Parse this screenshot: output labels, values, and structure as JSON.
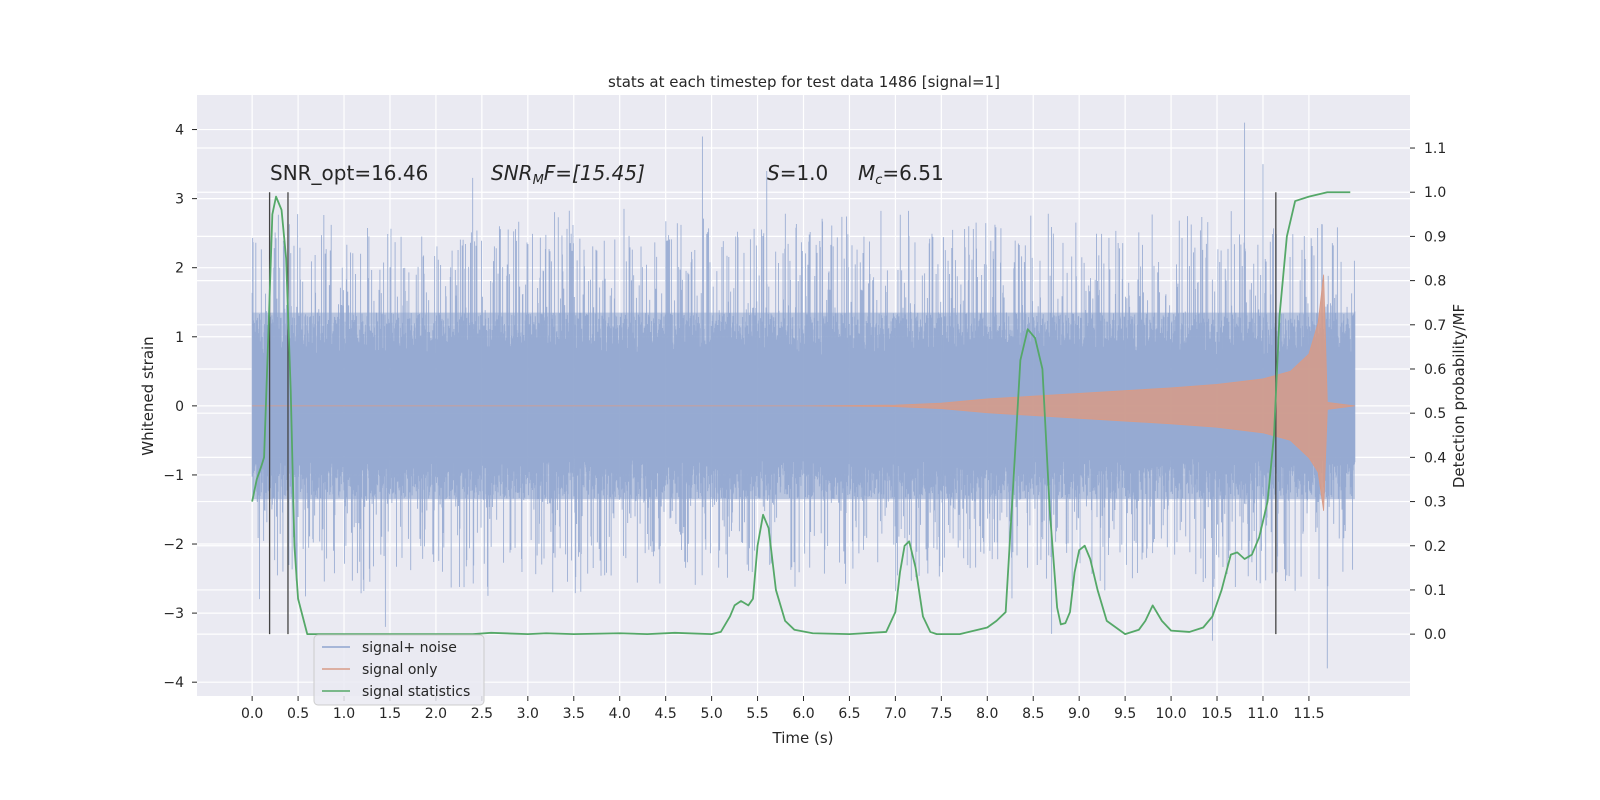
{
  "chart_data": {
    "type": "line",
    "title": "stats at each timestep for test data 1486 [signal=1]",
    "xlabel": "Time (s)",
    "ylabel": "Whitened strain",
    "y2label": "Detection probability/MF",
    "xlim": [
      -0.6,
      12.6
    ],
    "ylim": [
      -4.2,
      4.5
    ],
    "y2lim": [
      -0.14,
      1.22
    ],
    "x_ticks": [
      "0.0",
      "0.5",
      "1.0",
      "1.5",
      "2.0",
      "2.5",
      "3.0",
      "3.5",
      "4.0",
      "4.5",
      "5.0",
      "5.5",
      "6.0",
      "6.5",
      "7.0",
      "7.5",
      "8.0",
      "8.5",
      "9.0",
      "9.5",
      "10.0",
      "10.5",
      "11.0",
      "11.5"
    ],
    "y_ticks": [
      "4",
      "3",
      "2",
      "1",
      "0",
      "−1",
      "−2",
      "−3",
      "−4"
    ],
    "y2_ticks": [
      "1.1",
      "1.0",
      "0.9",
      "0.8",
      "0.7",
      "0.6",
      "0.5",
      "0.4",
      "0.3",
      "0.2",
      "0.1",
      "0.0"
    ],
    "grid": true,
    "legend_position": "lower-left",
    "annotations": {
      "snr_opt": "SNR_opt=16.46",
      "snr_mf_sym": "SNR",
      "snr_mf_sub": "M",
      "snr_mf_rest": "F=[15.45]",
      "s_sym": "S",
      "s_rest": "=1.0",
      "mc_sym": "M",
      "mc_sub": "c",
      "mc_rest": "=6.51"
    },
    "vertical_lines_x": [
      0.19,
      0.39,
      11.14
    ],
    "series": [
      {
        "name": "signal+ noise",
        "color": "#8fa5cf",
        "x_start": 0.0,
        "x_end": 12.0,
        "typical_peak_amplitude": 1.35,
        "max_value": 4.1,
        "min_value": -3.8
      },
      {
        "name": "signal only",
        "color": "#d89b87",
        "x": [
          0.0,
          6.0,
          7.0,
          7.5,
          8.0,
          8.5,
          9.0,
          9.5,
          10.0,
          10.5,
          11.0,
          11.3,
          11.5,
          11.6,
          11.66,
          11.7,
          12.0
        ],
        "envelope": [
          0.0,
          0.0,
          0.01,
          0.04,
          0.1,
          0.14,
          0.18,
          0.22,
          0.26,
          0.31,
          0.39,
          0.5,
          0.75,
          1.2,
          1.9,
          0.05,
          0.0
        ]
      },
      {
        "name": "signal statistics",
        "color": "#55a868",
        "x": [
          0.0,
          0.05,
          0.1,
          0.13,
          0.18,
          0.22,
          0.26,
          0.32,
          0.37,
          0.42,
          0.46,
          0.5,
          0.6,
          0.66,
          1.0,
          2.0,
          2.4,
          2.6,
          3.0,
          3.2,
          3.5,
          4.0,
          4.3,
          4.6,
          5.0,
          5.1,
          5.2,
          5.25,
          5.32,
          5.4,
          5.45,
          5.5,
          5.56,
          5.62,
          5.7,
          5.8,
          5.9,
          6.1,
          6.5,
          6.9,
          7.0,
          7.05,
          7.1,
          7.15,
          7.22,
          7.3,
          7.38,
          7.45,
          7.7,
          8.0,
          8.1,
          8.2,
          8.28,
          8.36,
          8.44,
          8.52,
          8.6,
          8.68,
          8.76,
          8.8,
          8.85,
          8.9,
          8.95,
          9.0,
          9.06,
          9.12,
          9.2,
          9.3,
          9.5,
          9.65,
          9.72,
          9.8,
          9.9,
          10.0,
          10.2,
          10.35,
          10.45,
          10.55,
          10.65,
          10.72,
          10.8,
          10.88,
          10.96,
          11.05,
          11.12,
          11.18,
          11.26,
          11.35,
          11.5,
          11.7,
          11.95
        ],
        "y": [
          0.3,
          0.35,
          0.38,
          0.4,
          0.7,
          0.95,
          0.99,
          0.96,
          0.85,
          0.55,
          0.2,
          0.08,
          0.0,
          0.0,
          0.0,
          0.0,
          0.0,
          0.003,
          0.0,
          0.002,
          0.0,
          0.002,
          0.0,
          0.003,
          0.0,
          0.005,
          0.04,
          0.065,
          0.075,
          0.065,
          0.08,
          0.2,
          0.27,
          0.24,
          0.1,
          0.03,
          0.01,
          0.002,
          0.0,
          0.005,
          0.05,
          0.14,
          0.2,
          0.21,
          0.15,
          0.04,
          0.005,
          0.0,
          0.0,
          0.015,
          0.03,
          0.05,
          0.33,
          0.62,
          0.69,
          0.67,
          0.6,
          0.28,
          0.06,
          0.022,
          0.025,
          0.05,
          0.14,
          0.19,
          0.2,
          0.17,
          0.1,
          0.03,
          0.0,
          0.01,
          0.03,
          0.065,
          0.03,
          0.008,
          0.005,
          0.015,
          0.04,
          0.1,
          0.18,
          0.185,
          0.17,
          0.18,
          0.22,
          0.3,
          0.45,
          0.72,
          0.9,
          0.98,
          0.99,
          1.0,
          1.0
        ]
      }
    ]
  }
}
